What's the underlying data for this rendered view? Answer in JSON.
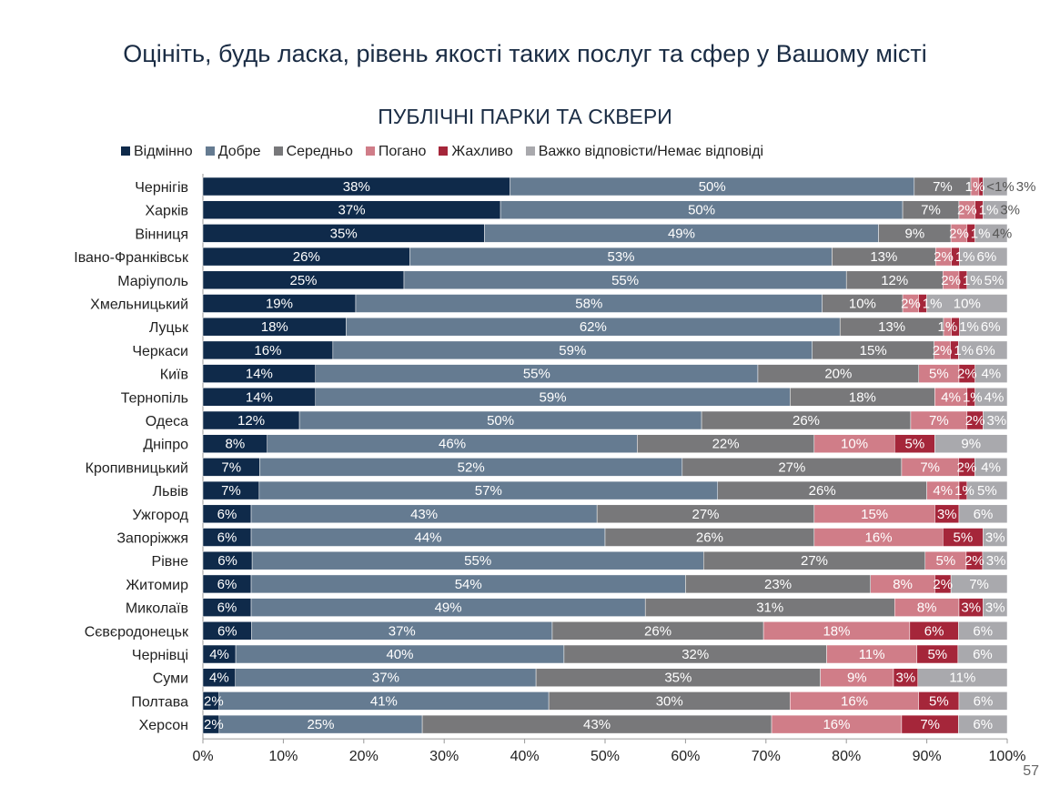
{
  "title": "Оцініть, будь ласка, рівень якості таких послуг та сфер у Вашому місті",
  "page_number": "57",
  "chart_data": {
    "type": "bar",
    "orientation": "horizontal",
    "stacked": true,
    "title": "ПУБЛІЧНІ ПАРКИ ТА СКВЕРИ",
    "xlim": [
      0,
      100
    ],
    "x_ticks": [
      "0%",
      "10%",
      "20%",
      "30%",
      "40%",
      "50%",
      "60%",
      "70%",
      "80%",
      "90%",
      "100%"
    ],
    "legend_position": "top",
    "categories": [
      "Чернігів",
      "Харків",
      "Вінниця",
      "Івано-Франківськ",
      "Маріуполь",
      "Хмельницький",
      "Луцьк",
      "Черкаси",
      "Київ",
      "Тернопіль",
      "Одеса",
      "Дніпро",
      "Кропивницький",
      "Львів",
      "Ужгород",
      "Запоріжжя",
      "Рівне",
      "Житомир",
      "Миколаїв",
      "Сєвєродонецьк",
      "Чернівці",
      "Суми",
      "Полтава",
      "Херсон"
    ],
    "series": [
      {
        "name": "Відмінно",
        "color": "#0f2a4a",
        "values": [
          38,
          37,
          35,
          26,
          25,
          19,
          18,
          16,
          14,
          14,
          12,
          8,
          7,
          7,
          6,
          6,
          6,
          6,
          6,
          6,
          4,
          4,
          2,
          2
        ]
      },
      {
        "name": "Добре",
        "color": "#657b91",
        "values": [
          50,
          50,
          49,
          53,
          55,
          58,
          62,
          59,
          55,
          59,
          50,
          46,
          52,
          57,
          43,
          44,
          55,
          54,
          49,
          37,
          40,
          37,
          41,
          25
        ]
      },
      {
        "name": "Середньо",
        "color": "#78787a",
        "values": [
          7,
          7,
          9,
          13,
          12,
          10,
          13,
          15,
          20,
          18,
          26,
          22,
          27,
          26,
          27,
          26,
          27,
          23,
          31,
          26,
          32,
          35,
          30,
          43
        ]
      },
      {
        "name": "Погано",
        "color": "#d07d88",
        "values": [
          1,
          2,
          2,
          2,
          2,
          2,
          1,
          2,
          5,
          4,
          7,
          10,
          7,
          4,
          15,
          16,
          5,
          8,
          8,
          18,
          11,
          9,
          16,
          16
        ]
      },
      {
        "name": "Жахливо",
        "color": "#a5263a",
        "values": [
          0.5,
          1,
          1,
          1,
          1,
          1,
          1,
          1,
          2,
          1,
          2,
          5,
          2,
          1,
          3,
          5,
          2,
          2,
          3,
          6,
          5,
          3,
          5,
          7
        ]
      },
      {
        "name": "Важко відповісти/Немає відповіді",
        "color": "#a9a9ad",
        "values": [
          3,
          3,
          4,
          6,
          5,
          10,
          6,
          6,
          4,
          4,
          3,
          9,
          4,
          5,
          6,
          3,
          3,
          7,
          3,
          6,
          6,
          11,
          6,
          6
        ]
      }
    ],
    "value_labels_override": {
      "0.5": "<1%"
    }
  }
}
